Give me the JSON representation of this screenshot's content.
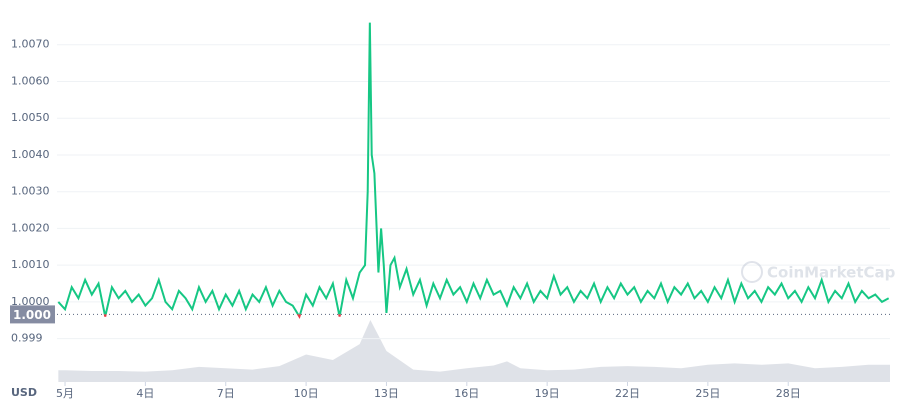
{
  "chart_data": {
    "type": "line",
    "currency_label": "USD",
    "watermark": "CoinMarketCap",
    "xlim": [
      0.7,
      31.8
    ],
    "ylim": [
      0.9988,
      1.008
    ],
    "xticks": [
      {
        "value": 1,
        "label": "5月"
      },
      {
        "value": 4,
        "label": "4日"
      },
      {
        "value": 7,
        "label": "7日"
      },
      {
        "value": 10,
        "label": "10日"
      },
      {
        "value": 13,
        "label": "13日"
      },
      {
        "value": 16,
        "label": "16日"
      },
      {
        "value": 19,
        "label": "19日"
      },
      {
        "value": 22,
        "label": "22日"
      },
      {
        "value": 25,
        "label": "25日"
      },
      {
        "value": 28,
        "label": "28日"
      }
    ],
    "yticks": [
      0.999,
      {
        "value": 1.0,
        "label": "1.0000"
      },
      {
        "value": 1.001,
        "label": "1.0010"
      },
      {
        "value": 1.002,
        "label": "1.0020"
      },
      {
        "value": 1.003,
        "label": "1.0030"
      },
      {
        "value": 1.004,
        "label": "1.0040"
      },
      {
        "value": 1.005,
        "label": "1.0050"
      },
      {
        "value": 1.006,
        "label": "1.0060"
      },
      {
        "value": 1.007,
        "label": "1.0070"
      }
    ],
    "grid": true,
    "reference": {
      "value": 0.99966,
      "label": "1.000"
    },
    "up_color": "#16c784",
    "down_color": "#ea3943",
    "x": [
      0.75,
      1,
      1.25,
      1.5,
      1.75,
      2,
      2.25,
      2.5,
      2.75,
      3,
      3.25,
      3.5,
      3.75,
      4,
      4.25,
      4.5,
      4.75,
      5,
      5.25,
      5.5,
      5.75,
      6,
      6.25,
      6.5,
      6.75,
      7,
      7.25,
      7.5,
      7.75,
      8,
      8.25,
      8.5,
      8.75,
      9,
      9.25,
      9.5,
      9.75,
      10,
      10.25,
      10.5,
      10.75,
      11,
      11.25,
      11.5,
      11.75,
      12,
      12.2,
      12.3,
      12.38,
      12.45,
      12.55,
      12.7,
      12.8,
      12.9,
      13,
      13.15,
      13.3,
      13.5,
      13.75,
      14,
      14.25,
      14.5,
      14.75,
      15,
      15.25,
      15.5,
      15.75,
      16,
      16.25,
      16.5,
      16.75,
      17,
      17.25,
      17.5,
      17.75,
      18,
      18.25,
      18.5,
      18.75,
      19,
      19.25,
      19.5,
      19.75,
      20,
      20.25,
      20.5,
      20.75,
      21,
      21.25,
      21.5,
      21.75,
      22,
      22.25,
      22.5,
      22.75,
      23,
      23.25,
      23.5,
      23.75,
      24,
      24.25,
      24.5,
      24.75,
      25,
      25.25,
      25.5,
      25.75,
      26,
      26.25,
      26.5,
      26.75,
      27,
      27.25,
      27.5,
      27.75,
      28,
      28.25,
      28.5,
      28.75,
      29,
      29.25,
      29.5,
      29.75,
      30,
      30.25,
      30.5,
      30.75,
      31,
      31.25,
      31.5,
      31.75
    ],
    "values": [
      1.0,
      0.9998,
      1.0004,
      1.0001,
      1.0006,
      1.0002,
      1.0005,
      0.9996,
      1.0004,
      1.0001,
      1.0003,
      1.0,
      1.0002,
      0.9999,
      1.0001,
      1.0006,
      1.0,
      0.9998,
      1.0003,
      1.0001,
      0.9998,
      1.0004,
      1.0,
      1.0003,
      0.9998,
      1.0002,
      0.9999,
      1.0003,
      0.9998,
      1.0002,
      1.0,
      1.0004,
      0.9999,
      1.0003,
      1.0,
      0.9999,
      0.9996,
      1.0002,
      0.9999,
      1.0004,
      1.0001,
      1.0005,
      0.9996,
      1.0006,
      1.0001,
      1.0008,
      1.001,
      1.003,
      1.0076,
      1.004,
      1.0035,
      1.0008,
      1.002,
      1.001,
      0.9997,
      1.001,
      1.0012,
      1.0004,
      1.0009,
      1.0002,
      1.0006,
      0.9999,
      1.0005,
      1.0001,
      1.0006,
      1.0002,
      1.0004,
      1.0,
      1.0005,
      1.0001,
      1.0006,
      1.0002,
      1.0003,
      0.9999,
      1.0004,
      1.0001,
      1.0005,
      1.0,
      1.0003,
      1.0001,
      1.0007,
      1.0002,
      1.0004,
      1.0,
      1.0003,
      1.0001,
      1.0005,
      1.0,
      1.0004,
      1.0001,
      1.0005,
      1.0002,
      1.0004,
      1.0,
      1.0003,
      1.0001,
      1.0005,
      1.0,
      1.0004,
      1.0002,
      1.0005,
      1.0001,
      1.0003,
      1.0,
      1.0004,
      1.0001,
      1.0006,
      1.0,
      1.0005,
      1.0001,
      1.0003,
      1.0,
      1.0004,
      1.0002,
      1.0005,
      1.0001,
      1.0003,
      1.0,
      1.0004,
      1.0001,
      1.0006,
      1.0,
      1.0003,
      1.0001,
      1.0005,
      1.0,
      1.0003,
      1.0001,
      1.0002,
      1.0,
      1.0001
    ],
    "volume_x": [
      0.75,
      1,
      2,
      3,
      4,
      5,
      6,
      7,
      8,
      9,
      10,
      11,
      12,
      12.4,
      13,
      14,
      15,
      16,
      17,
      17.5,
      18,
      19,
      20,
      21,
      22,
      23,
      24,
      25,
      26,
      27,
      28,
      29,
      30,
      31,
      31.8
    ],
    "volume_values": [
      17,
      17,
      16,
      16,
      15,
      17,
      22,
      20,
      18,
      23,
      40,
      32,
      55,
      90,
      45,
      18,
      15,
      20,
      24,
      30,
      20,
      17,
      18,
      22,
      23,
      22,
      20,
      25,
      27,
      25,
      27,
      20,
      22,
      25,
      25
    ]
  }
}
